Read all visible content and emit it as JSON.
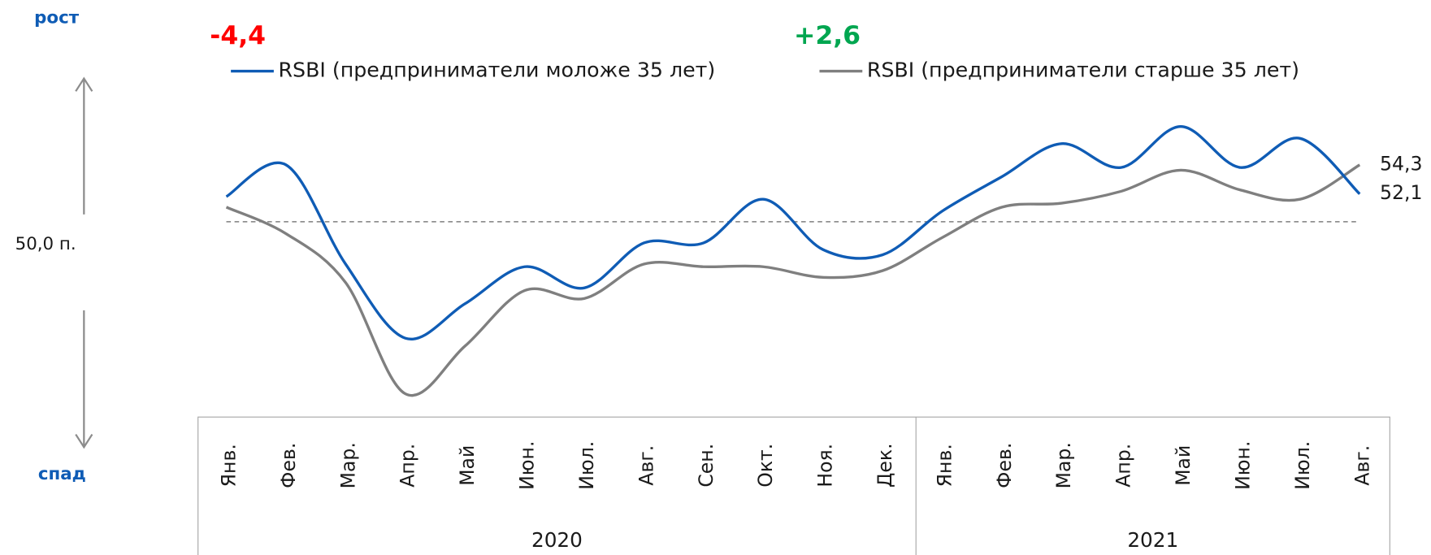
{
  "chart_data": {
    "type": "line",
    "categories": [
      "Янв.",
      "Фев.",
      "Мар.",
      "Апр.",
      "Май",
      "Июн.",
      "Июл.",
      "Авг.",
      "Сен.",
      "Окт.",
      "Ноя.",
      "Дек.",
      "Янв.",
      "Фев.",
      "Мар.",
      "Апр.",
      "Май",
      "Июн.",
      "Июл.",
      "Авг."
    ],
    "year_labels": [
      "2020",
      "2021"
    ],
    "series": [
      {
        "name": "RSBI (предприниматели моложе 35 лет)",
        "color": "#0f5cb5",
        "values": [
          51.9,
          54.3,
          46.8,
          41.2,
          43.8,
          46.6,
          45.0,
          48.4,
          48.4,
          51.7,
          47.9,
          47.5,
          50.8,
          53.4,
          55.9,
          54.1,
          57.2,
          54.1,
          56.3,
          52.1
        ],
        "value_labels": [
          null,
          null,
          null,
          null,
          null,
          null,
          null,
          null,
          null,
          null,
          null,
          null,
          null,
          null,
          null,
          null,
          null,
          null,
          null,
          "52,1"
        ]
      },
      {
        "name": "RSBI (предприниматели старше 35 лет)",
        "color": "#7f7f7f",
        "values": [
          51.1,
          49.1,
          45.4,
          37.0,
          40.6,
          44.8,
          44.2,
          46.8,
          46.6,
          46.6,
          45.8,
          46.3,
          48.8,
          51.1,
          51.4,
          52.3,
          53.9,
          52.4,
          51.7,
          54.3
        ],
        "value_labels": [
          null,
          null,
          null,
          null,
          null,
          null,
          null,
          null,
          null,
          null,
          null,
          null,
          null,
          null,
          null,
          null,
          null,
          null,
          null,
          "54,3"
        ]
      }
    ],
    "ylim": [
      36,
      59
    ],
    "reference_line": {
      "value": 50,
      "label": "50,0 п."
    },
    "annotations": [
      {
        "text": "-4,4",
        "color": "#ff0000"
      },
      {
        "text": "+2,6",
        "color": "#00a650"
      }
    ],
    "up_label": "рост",
    "down_label": "спад"
  }
}
